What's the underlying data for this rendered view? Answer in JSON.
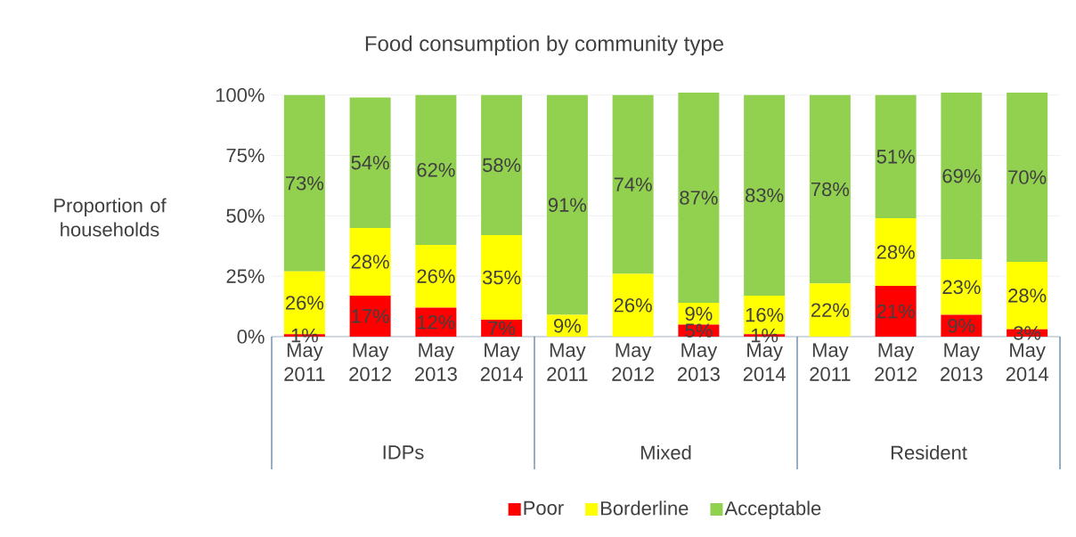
{
  "chart_data": {
    "type": "bar",
    "stacked": true,
    "title": "Food consumption by community type",
    "ylabel": "Proportion of households",
    "categories": [
      "May 2011",
      "May 2012",
      "May 2013",
      "May 2014",
      "May 2011",
      "May 2012",
      "May 2013",
      "May 2014",
      "May 2011",
      "May 2012",
      "May 2013",
      "May 2014"
    ],
    "annotations": [
      "IDPs",
      "Mixed",
      "Resident"
    ],
    "series": [
      {
        "name": "Poor",
        "color": "#ff0000",
        "values": [
          1,
          17,
          12,
          7,
          0,
          0,
          5,
          1,
          0,
          21,
          9,
          3
        ],
        "value_labels": [
          "1%",
          "17%",
          "12%",
          "7%",
          null,
          null,
          "5%",
          "1%",
          null,
          "21%",
          "9%",
          "3%"
        ]
      },
      {
        "name": "Borderline",
        "color": "#ffff00",
        "values": [
          26,
          28,
          26,
          35,
          9,
          26,
          9,
          16,
          22,
          28,
          23,
          28
        ],
        "value_labels": [
          "26%",
          "28%",
          "26%",
          "35%",
          "9%",
          "26%",
          "9%",
          "16%",
          "22%",
          "28%",
          "23%",
          "28%"
        ]
      },
      {
        "name": "Acceptable",
        "color": "#92d050",
        "values": [
          73,
          54,
          62,
          58,
          91,
          74,
          87,
          83,
          78,
          51,
          69,
          70
        ],
        "value_labels": [
          "73%",
          "54%",
          "62%",
          "58%",
          "91%",
          "74%",
          "87%",
          "83%",
          "78%",
          "51%",
          "69%",
          "70%"
        ]
      }
    ],
    "ylim": [
      0,
      101
    ],
    "yticks": [
      {
        "value": 0,
        "label": "0%"
      },
      {
        "value": 25,
        "label": "25%"
      },
      {
        "value": 50,
        "label": "50%"
      },
      {
        "value": 75,
        "label": "75%"
      },
      {
        "value": 100,
        "label": "100%"
      }
    ],
    "grid": "y",
    "legend": "bottom"
  }
}
